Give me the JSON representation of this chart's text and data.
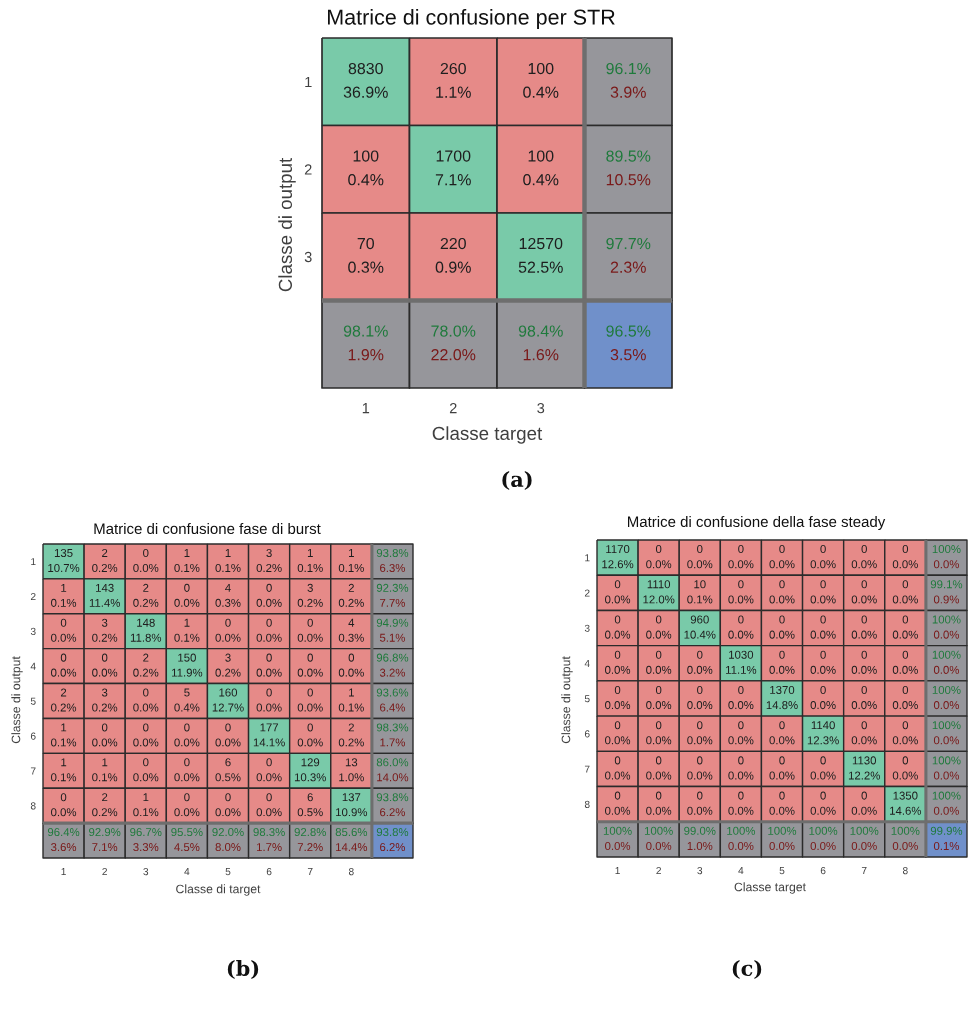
{
  "chart_data": [
    {
      "type": "heatmap",
      "title": "Matrice di confusione per STR",
      "xlabel": "Classe target",
      "ylabel": "Classe di output",
      "categories": [
        "1",
        "2",
        "3",
        null
      ],
      "y_categories": [
        "1",
        "2",
        "3",
        null
      ],
      "cells": [
        [
          8830,
          260,
          100,
          96.1
        ],
        [
          100,
          1700,
          100,
          89.5
        ],
        [
          70,
          220,
          12570,
          97.7
        ],
        [
          98.1,
          78.0,
          98.4,
          96.5
        ]
      ],
      "cell_labels": [
        [
          "8830",
          "260",
          "100",
          "96.1%"
        ],
        [
          "100",
          "1700",
          "100",
          "89.5%"
        ],
        [
          "70",
          "220",
          "12570",
          "97.7%"
        ],
        [
          "98.1%",
          "78.0%",
          "98.4%",
          "96.5%"
        ]
      ],
      "colors": [
        [
          "#79caa9",
          "#e68a88",
          "#e68a88",
          "#96969b"
        ],
        [
          "#e68a88",
          "#79caa9",
          "#e68a88",
          "#96969b"
        ],
        [
          "#e68a88",
          "#e68a88",
          "#79caa9",
          "#96969b"
        ],
        [
          "#96969b",
          "#96969b",
          "#96969b",
          "#7090ca"
        ]
      ],
      "annotations": [
        "36.9%",
        "1.1%",
        "0.4%",
        "3.9%",
        "0.4%",
        "7.1%",
        "0.4%",
        "10.5%",
        "0.3%",
        "0.9%",
        "52.5%",
        "2.3%",
        "1.9%",
        "22.0%",
        "1.6%",
        "3.5%",
        "(a)"
      ]
    },
    {
      "type": "heatmap",
      "title": "Matrice di confusione fase di burst",
      "xlabel": "Classe di target",
      "ylabel": "Classe di output",
      "categories": [
        "1",
        "2",
        "3",
        "4",
        "5",
        "6",
        "7",
        "8",
        null
      ],
      "y_categories": [
        "1",
        "2",
        "3",
        "4",
        "5",
        "6",
        "7",
        "8",
        null
      ],
      "cells": [
        [
          135,
          2,
          0,
          1,
          1,
          3,
          1,
          1,
          93.8
        ],
        [
          1,
          143,
          2,
          0,
          4,
          0,
          3,
          2,
          92.3
        ],
        [
          0,
          3,
          148,
          1,
          0,
          0,
          0,
          4,
          94.9
        ],
        [
          0,
          0,
          2,
          150,
          3,
          0,
          0,
          0,
          96.8
        ],
        [
          2,
          3,
          0,
          5,
          160,
          0,
          0,
          1,
          93.6
        ],
        [
          1,
          0,
          0,
          0,
          0,
          177,
          0,
          2,
          98.3
        ],
        [
          1,
          1,
          0,
          0,
          6,
          0,
          129,
          13,
          86.0
        ],
        [
          0,
          2,
          1,
          0,
          0,
          0,
          6,
          137,
          93.8
        ],
        [
          96.4,
          92.9,
          96.7,
          95.5,
          92.0,
          98.3,
          92.8,
          85.6,
          93.8
        ]
      ],
      "cell_labels": [
        [
          "135",
          "2",
          "0",
          "1",
          "1",
          "3",
          "1",
          "1",
          "93.8%"
        ],
        [
          "1",
          "143",
          "2",
          "0",
          "4",
          "0",
          "3",
          "2",
          "92.3%"
        ],
        [
          "0",
          "3",
          "148",
          "1",
          "0",
          "0",
          "0",
          "4",
          "94.9%"
        ],
        [
          "0",
          "0",
          "2",
          "150",
          "3",
          "0",
          "0",
          "0",
          "96.8%"
        ],
        [
          "2",
          "3",
          "0",
          "5",
          "160",
          "0",
          "0",
          "1",
          "93.6%"
        ],
        [
          "1",
          "0",
          "0",
          "0",
          "0",
          "177",
          "0",
          "2",
          "98.3%"
        ],
        [
          "1",
          "1",
          "0",
          "0",
          "6",
          "0",
          "129",
          "13",
          "86.0%"
        ],
        [
          "0",
          "2",
          "1",
          "0",
          "0",
          "0",
          "6",
          "137",
          "93.8%"
        ],
        [
          "96.4%",
          "92.9%",
          "96.7%",
          "95.5%",
          "92.0%",
          "98.3%",
          "92.8%",
          "85.6%",
          "93.8%"
        ]
      ],
      "colors": [
        [
          "#79caa9",
          "#e68a88",
          "#e68a88",
          "#e68a88",
          "#e68a88",
          "#e68a88",
          "#e68a88",
          "#e68a88",
          "#96969b"
        ],
        [
          "#e68a88",
          "#79caa9",
          "#e68a88",
          "#e68a88",
          "#e68a88",
          "#e68a88",
          "#e68a88",
          "#e68a88",
          "#96969b"
        ],
        [
          "#e68a88",
          "#e68a88",
          "#79caa9",
          "#e68a88",
          "#e68a88",
          "#e68a88",
          "#e68a88",
          "#e68a88",
          "#96969b"
        ],
        [
          "#e68a88",
          "#e68a88",
          "#e68a88",
          "#79caa9",
          "#e68a88",
          "#e68a88",
          "#e68a88",
          "#e68a88",
          "#96969b"
        ],
        [
          "#e68a88",
          "#e68a88",
          "#e68a88",
          "#e68a88",
          "#79caa9",
          "#e68a88",
          "#e68a88",
          "#e68a88",
          "#96969b"
        ],
        [
          "#e68a88",
          "#e68a88",
          "#e68a88",
          "#e68a88",
          "#e68a88",
          "#79caa9",
          "#e68a88",
          "#e68a88",
          "#96969b"
        ],
        [
          "#e68a88",
          "#e68a88",
          "#e68a88",
          "#e68a88",
          "#e68a88",
          "#e68a88",
          "#79caa9",
          "#e68a88",
          "#96969b"
        ],
        [
          "#e68a88",
          "#e68a88",
          "#e68a88",
          "#e68a88",
          "#e68a88",
          "#e68a88",
          "#e68a88",
          "#79caa9",
          "#96969b"
        ],
        [
          "#96969b",
          "#96969b",
          "#96969b",
          "#96969b",
          "#96969b",
          "#96969b",
          "#96969b",
          "#96969b",
          "#7090ca"
        ]
      ],
      "annotations": [
        "10.7%",
        "0.2%",
        "0.0%",
        "0.1%",
        "0.1%",
        "0.2%",
        "0.1%",
        "0.1%",
        "6.3%",
        "0.1%",
        "11.4%",
        "0.2%",
        "0.0%",
        "0.3%",
        "0.0%",
        "0.2%",
        "0.2%",
        "7.7%",
        "0.0%",
        "0.2%",
        "11.8%",
        "0.1%",
        "0.0%",
        "0.0%",
        "0.0%",
        "0.3%",
        "5.1%",
        "0.0%",
        "0.0%",
        "0.2%",
        "11.9%",
        "0.2%",
        "0.0%",
        "0.0%",
        "0.0%",
        "3.2%",
        "0.2%",
        "0.2%",
        "0.0%",
        "0.4%",
        "12.7%",
        "0.0%",
        "0.0%",
        "0.1%",
        "6.4%",
        "0.1%",
        "0.0%",
        "0.0%",
        "0.0%",
        "0.0%",
        "14.1%",
        "0.0%",
        "0.2%",
        "1.7%",
        "0.1%",
        "0.1%",
        "0.0%",
        "0.0%",
        "0.5%",
        "0.0%",
        "10.3%",
        "1.0%",
        "14.0%",
        "0.0%",
        "0.2%",
        "0.1%",
        "0.0%",
        "0.0%",
        "0.0%",
        "0.5%",
        "10.9%",
        "6.2%",
        "3.6%",
        "7.1%",
        "3.3%",
        "4.5%",
        "8.0%",
        "1.7%",
        "7.2%",
        "14.4%",
        "6.2%",
        "(b)"
      ]
    },
    {
      "type": "heatmap",
      "title": "Matrice di confusione della fase steady",
      "xlabel": "Classe target",
      "ylabel": "Classe di output",
      "categories": [
        "1",
        "2",
        "3",
        "4",
        "5",
        "6",
        "7",
        "8",
        null
      ],
      "y_categories": [
        "1",
        "2",
        "3",
        "4",
        "5",
        "6",
        "7",
        "8",
        null
      ],
      "cells": [
        [
          1170,
          0,
          0,
          0,
          0,
          0,
          0,
          0,
          100
        ],
        [
          0,
          1110,
          10,
          0,
          0,
          0,
          0,
          0,
          99.1
        ],
        [
          0,
          0,
          960,
          0,
          0,
          0,
          0,
          0,
          100
        ],
        [
          0,
          0,
          0,
          1030,
          0,
          0,
          0,
          0,
          100
        ],
        [
          0,
          0,
          0,
          0,
          1370,
          0,
          0,
          0,
          100
        ],
        [
          0,
          0,
          0,
          0,
          0,
          1140,
          0,
          0,
          100
        ],
        [
          0,
          0,
          0,
          0,
          0,
          0,
          1130,
          0,
          100
        ],
        [
          0,
          0,
          0,
          0,
          0,
          0,
          0,
          1350,
          100
        ],
        [
          100,
          100,
          99.0,
          100,
          100,
          100,
          100,
          100,
          99.9
        ]
      ],
      "cell_labels": [
        [
          "1170",
          "0",
          "0",
          "0",
          "0",
          "0",
          "0",
          "0",
          "100%"
        ],
        [
          "0",
          "1110",
          "10",
          "0",
          "0",
          "0",
          "0",
          "0",
          "99.1%"
        ],
        [
          "0",
          "0",
          "960",
          "0",
          "0",
          "0",
          "0",
          "0",
          "100%"
        ],
        [
          "0",
          "0",
          "0",
          "1030",
          "0",
          "0",
          "0",
          "0",
          "100%"
        ],
        [
          "0",
          "0",
          "0",
          "0",
          "1370",
          "0",
          "0",
          "0",
          "100%"
        ],
        [
          "0",
          "0",
          "0",
          "0",
          "0",
          "1140",
          "0",
          "0",
          "100%"
        ],
        [
          "0",
          "0",
          "0",
          "0",
          "0",
          "0",
          "1130",
          "0",
          "100%"
        ],
        [
          "0",
          "0",
          "0",
          "0",
          "0",
          "0",
          "0",
          "1350",
          "100%"
        ],
        [
          "100%",
          "100%",
          "99.0%",
          "100%",
          "100%",
          "100%",
          "100%",
          "100%",
          "99.9%"
        ]
      ],
      "colors": [
        [
          "#79caa9",
          "#e68a88",
          "#e68a88",
          "#e68a88",
          "#e68a88",
          "#e68a88",
          "#e68a88",
          "#e68a88",
          "#96969b"
        ],
        [
          "#e68a88",
          "#79caa9",
          "#e68a88",
          "#e68a88",
          "#e68a88",
          "#e68a88",
          "#e68a88",
          "#e68a88",
          "#96969b"
        ],
        [
          "#e68a88",
          "#e68a88",
          "#79caa9",
          "#e68a88",
          "#e68a88",
          "#e68a88",
          "#e68a88",
          "#e68a88",
          "#96969b"
        ],
        [
          "#e68a88",
          "#e68a88",
          "#e68a88",
          "#79caa9",
          "#e68a88",
          "#e68a88",
          "#e68a88",
          "#e68a88",
          "#96969b"
        ],
        [
          "#e68a88",
          "#e68a88",
          "#e68a88",
          "#e68a88",
          "#79caa9",
          "#e68a88",
          "#e68a88",
          "#e68a88",
          "#96969b"
        ],
        [
          "#e68a88",
          "#e68a88",
          "#e68a88",
          "#e68a88",
          "#e68a88",
          "#79caa9",
          "#e68a88",
          "#e68a88",
          "#96969b"
        ],
        [
          "#e68a88",
          "#e68a88",
          "#e68a88",
          "#e68a88",
          "#e68a88",
          "#e68a88",
          "#79caa9",
          "#e68a88",
          "#96969b"
        ],
        [
          "#e68a88",
          "#e68a88",
          "#e68a88",
          "#e68a88",
          "#e68a88",
          "#e68a88",
          "#e68a88",
          "#79caa9",
          "#96969b"
        ],
        [
          "#96969b",
          "#96969b",
          "#96969b",
          "#96969b",
          "#96969b",
          "#96969b",
          "#96969b",
          "#96969b",
          "#7090ca"
        ]
      ],
      "annotations": [
        "12.6%",
        "0.0%",
        "0.0%",
        "0.0%",
        "0.0%",
        "0.0%",
        "0.0%",
        "0.0%",
        "0.0%",
        "0.0%",
        "12.0%",
        "0.1%",
        "0.0%",
        "0.0%",
        "0.0%",
        "0.0%",
        "0.0%",
        "0.9%",
        "0.0%",
        "0.0%",
        "10.4%",
        "0.0%",
        "0.0%",
        "0.0%",
        "0.0%",
        "0.0%",
        "0.0%",
        "0.0%",
        "0.0%",
        "0.0%",
        "11.1%",
        "0.0%",
        "0.0%",
        "0.0%",
        "0.0%",
        "0.0%",
        "0.0%",
        "0.0%",
        "0.0%",
        "0.0%",
        "14.8%",
        "0.0%",
        "0.0%",
        "0.0%",
        "0.0%",
        "0.0%",
        "0.0%",
        "0.0%",
        "0.0%",
        "0.0%",
        "12.3%",
        "0.0%",
        "0.0%",
        "0.0%",
        "0.0%",
        "0.0%",
        "0.0%",
        "0.0%",
        "0.0%",
        "0.0%",
        "12.2%",
        "0.0%",
        "0.0%",
        "0.0%",
        "0.0%",
        "0.0%",
        "0.0%",
        "0.0%",
        "0.0%",
        "0.0%",
        "14.6%",
        "0.0%",
        "0.0%",
        "0.0%",
        "1.0%",
        "0.0%",
        "0.0%",
        "0.0%",
        "0.0%",
        "0.0%",
        "0.1%",
        "(c)"
      ]
    }
  ]
}
